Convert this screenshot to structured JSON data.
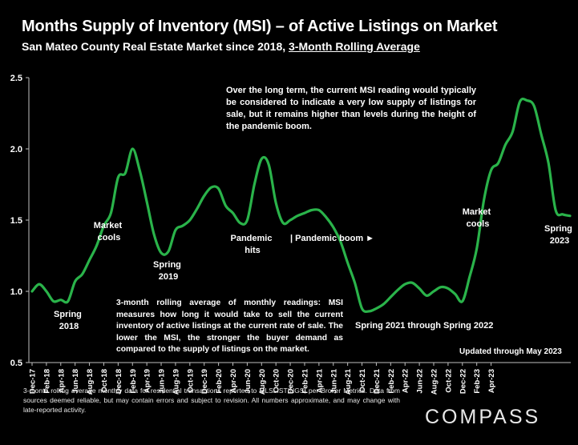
{
  "header": {
    "title": "Months Supply of Inventory (MSI) – of Active Listings on Market",
    "subtitle_prefix": "San Mateo County Real Estate Market since 2018, ",
    "subtitle_underlined": "3-Month Rolling Average"
  },
  "notes": {
    "top": "Over the long term, the current MSI reading would typically be considered to indicate a very low supply of listings for sale, but it remains higher than levels during the height of the pandemic boom.",
    "bottom": "3-month rolling average of monthly readings: MSI measures how long it would take to sell the current inventory of active listings at the current rate of sale. The lower the MSI, the stronger the buyer demand as compared to the supply of listings on the market.",
    "updated": "Updated through May 2023"
  },
  "footer": {
    "text": "3-month rolling average monthly data for residential transactions reported to MLSLISTINGS, per Broker Metrics. Data from sources deemed reliable, but may contain errors and subject to revision. All numbers approximate, and may change with late-reported activity.",
    "brand": "COMPASS"
  },
  "chart_data": {
    "type": "line",
    "title": "Months Supply of Inventory (MSI) – of Active Listings on Market",
    "subtitle": "San Mateo County Real Estate Market since 2018, 3-Month Rolling Average",
    "xlabel": "",
    "ylabel": "",
    "ylim": [
      0.5,
      2.5
    ],
    "yticks": [
      "0.5",
      "1.0",
      "1.5",
      "2.0",
      "2.5"
    ],
    "grid": false,
    "line_color": "#2ab34a",
    "x_tick_labels": [
      "Dec-17",
      "Feb-18",
      "Apr-18",
      "Jun-18",
      "Aug-18",
      "Oct-18",
      "Dec-18",
      "Feb-19",
      "Apr-19",
      "Jun-19",
      "Aug-19",
      "Oct-19",
      "Dec-19",
      "Feb-20",
      "Apr-20",
      "Jun-20",
      "Aug-20",
      "Oct-20",
      "Dec-20",
      "Feb-21",
      "Apr-21",
      "Jun-21",
      "Aug-21",
      "Oct-21",
      "Dec-21",
      "Feb-22",
      "Apr-22",
      "Jun-22",
      "Aug-22",
      "Oct-22",
      "Dec-22",
      "Feb-23",
      "Apr-23"
    ],
    "series": [
      {
        "values": [
          1.0,
          1.05,
          1.0,
          0.93,
          0.94,
          0.93,
          1.07,
          1.12,
          1.22,
          1.32,
          1.46,
          1.55,
          1.8,
          1.83,
          2.0,
          1.85,
          1.63,
          1.4,
          1.27,
          1.28,
          1.43,
          1.46,
          1.5,
          1.58,
          1.67,
          1.73,
          1.72,
          1.6,
          1.55,
          1.48,
          1.5,
          1.75,
          1.93,
          1.89,
          1.62,
          1.48,
          1.5,
          1.53,
          1.55,
          1.57,
          1.57,
          1.52,
          1.45,
          1.35,
          1.2,
          1.06,
          0.88,
          0.86,
          0.88,
          0.91,
          0.96,
          1.01,
          1.05,
          1.06,
          1.02,
          0.97,
          1.0,
          1.03,
          1.02,
          0.98,
          0.93,
          1.1,
          1.3,
          1.64,
          1.85,
          1.9,
          2.03,
          2.12,
          2.33,
          2.34,
          2.3,
          2.1,
          1.9,
          1.57,
          1.54,
          1.53
        ]
      }
    ],
    "annotations": [
      "Spring 2018",
      "Market cools",
      "Spring 2019",
      "Pandemic hits",
      "| Pandemic boom ►",
      "Spring 2021 through Spring 2022",
      "Market cools",
      "Spring 2023"
    ]
  }
}
